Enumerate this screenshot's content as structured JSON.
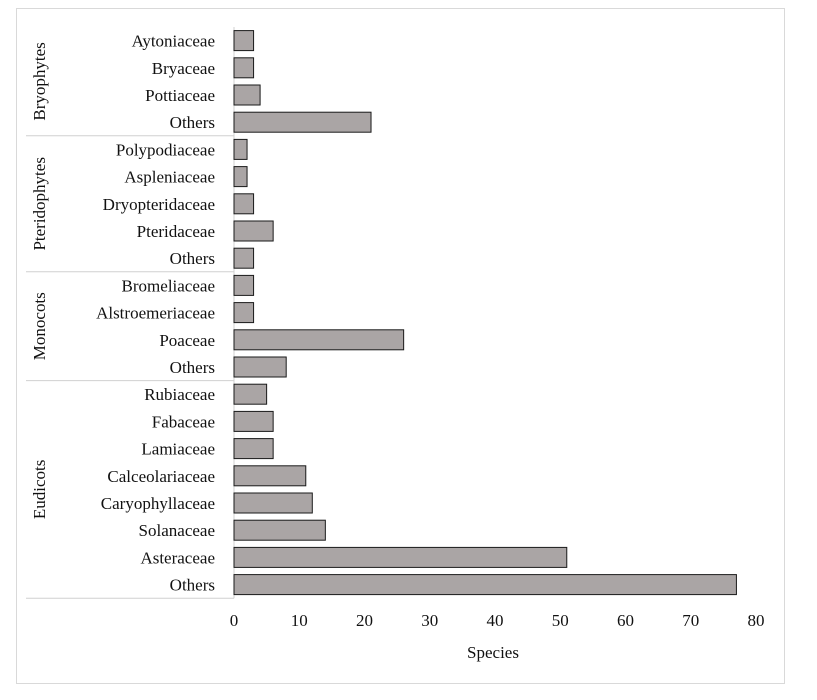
{
  "chart_data": {
    "type": "bar",
    "orientation": "horizontal",
    "xlabel": "Species",
    "xlim": [
      0,
      80
    ],
    "xticks": [
      0,
      10,
      20,
      30,
      40,
      50,
      60,
      70,
      80
    ],
    "grid": false,
    "bar_color": "#aaa5a5",
    "bar_edge_color": "#1a1a1a",
    "groups": [
      {
        "name": "Bryophytes",
        "bars": [
          {
            "category": "Aytoniaceae",
            "value": 3
          },
          {
            "category": "Bryaceae",
            "value": 3
          },
          {
            "category": "Pottiaceae",
            "value": 4
          },
          {
            "category": "Others",
            "value": 21
          }
        ]
      },
      {
        "name": "Pteridophytes",
        "bars": [
          {
            "category": "Polypodiaceae",
            "value": 2
          },
          {
            "category": "Aspleniaceae",
            "value": 2
          },
          {
            "category": "Dryopteridaceae",
            "value": 3
          },
          {
            "category": "Pteridaceae",
            "value": 6
          },
          {
            "category": "Others",
            "value": 3
          }
        ]
      },
      {
        "name": "Monocots",
        "bars": [
          {
            "category": "Bromeliaceae",
            "value": 3
          },
          {
            "category": "Alstroemeriaceae",
            "value": 3
          },
          {
            "category": "Poaceae",
            "value": 26
          },
          {
            "category": "Others",
            "value": 8
          }
        ]
      },
      {
        "name": "Eudicots",
        "bars": [
          {
            "category": "Rubiaceae",
            "value": 5
          },
          {
            "category": "Fabaceae",
            "value": 6
          },
          {
            "category": "Lamiaceae",
            "value": 6
          },
          {
            "category": "Calceolariaceae",
            "value": 11
          },
          {
            "category": "Caryophyllaceae",
            "value": 12
          },
          {
            "category": "Solanaceae",
            "value": 14
          },
          {
            "category": "Asteraceae",
            "value": 51
          },
          {
            "category": "Others",
            "value": 77
          }
        ]
      }
    ]
  }
}
